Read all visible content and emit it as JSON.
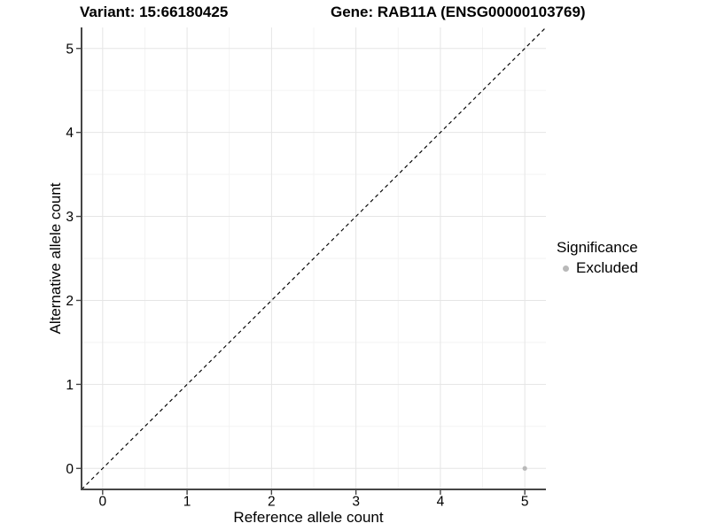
{
  "chart_data": {
    "type": "scatter",
    "titles": {
      "left": "Variant: 15:66180425",
      "right": "Gene: RAB11A (ENSG00000103769)"
    },
    "xlabel": "Reference allele count",
    "ylabel": "Alternative allele count",
    "xlim": [
      -0.25,
      5.25
    ],
    "ylim": [
      -0.25,
      5.25
    ],
    "xticks": [
      0,
      1,
      2,
      3,
      4,
      5
    ],
    "yticks": [
      0,
      1,
      2,
      3,
      4,
      5
    ],
    "xminor": [
      0.5,
      1.5,
      2.5,
      3.5,
      4.5
    ],
    "yminor": [
      0.5,
      1.5,
      2.5,
      3.5,
      4.5
    ],
    "grid": true,
    "identity_line": {
      "from": [
        -0.25,
        -0.25
      ],
      "to": [
        5.25,
        5.25
      ],
      "style": "dashed"
    },
    "series": [
      {
        "name": "Excluded",
        "color": "#b9b9b9",
        "points": [
          {
            "x": 5,
            "y": 0
          }
        ]
      }
    ],
    "legend": {
      "title": "Significance",
      "position": "right",
      "items": [
        {
          "label": "Excluded",
          "color": "#b9b9b9"
        }
      ]
    }
  },
  "colors": {
    "background": "#ffffff",
    "grid_major": "#e5e5e5",
    "grid_minor": "#f2f2f2",
    "axis_line": "#464646",
    "tick_mark": "#464646",
    "text": "#000000",
    "identity_line": "#000000"
  }
}
